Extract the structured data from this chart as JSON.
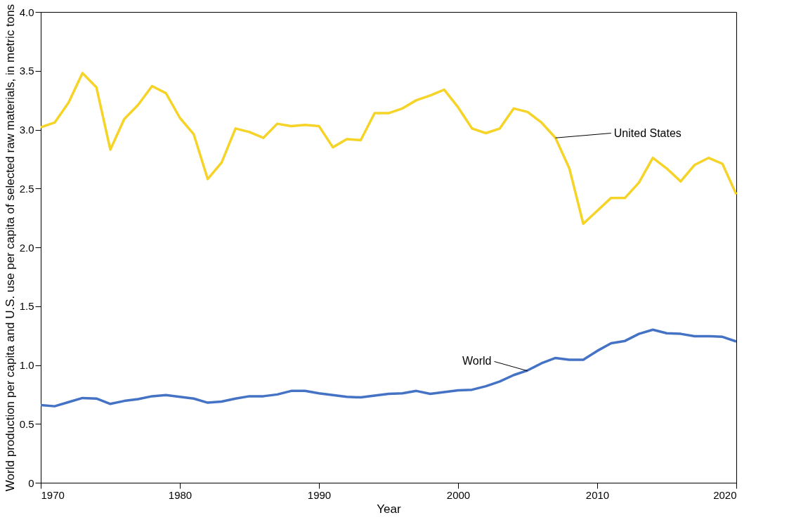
{
  "chart_data": {
    "type": "line",
    "xlabel": "Year",
    "ylabel": "World production per capita and U.S. use per capita of selected raw materials, in metric tons",
    "x": [
      1970,
      1971,
      1972,
      1973,
      1974,
      1975,
      1976,
      1977,
      1978,
      1979,
      1980,
      1981,
      1982,
      1983,
      1984,
      1985,
      1986,
      1987,
      1988,
      1989,
      1990,
      1991,
      1992,
      1993,
      1994,
      1995,
      1996,
      1997,
      1998,
      1999,
      2000,
      2001,
      2002,
      2003,
      2004,
      2005,
      2006,
      2007,
      2008,
      2009,
      2010,
      2011,
      2012,
      2013,
      2014,
      2015,
      2016,
      2017,
      2018,
      2019,
      2020
    ],
    "series": [
      {
        "color": "#f5d327",
        "values": [
          3.02,
          3.06,
          3.23,
          3.48,
          3.36,
          2.83,
          3.09,
          3.21,
          3.37,
          3.31,
          3.1,
          2.96,
          2.58,
          2.72,
          3.01,
          2.98,
          2.93,
          3.05,
          3.03,
          3.04,
          3.03,
          2.85,
          2.92,
          2.91,
          3.14,
          3.14,
          3.18,
          3.25,
          3.29,
          3.34,
          3.19,
          3.01,
          2.97,
          3.01,
          3.18,
          3.15,
          3.06,
          2.93,
          2.67,
          2.2,
          2.31,
          2.42,
          2.42,
          2.55,
          2.76,
          2.67,
          2.56,
          2.7,
          2.76,
          2.71,
          2.45
        ]
      },
      {
        "color": "#4472c4",
        "values": [
          0.66,
          0.65,
          0.685,
          0.72,
          0.715,
          0.67,
          0.695,
          0.71,
          0.735,
          0.745,
          0.73,
          0.715,
          0.68,
          0.69,
          0.715,
          0.735,
          0.735,
          0.75,
          0.78,
          0.78,
          0.76,
          0.745,
          0.73,
          0.725,
          0.74,
          0.755,
          0.76,
          0.78,
          0.755,
          0.77,
          0.785,
          0.79,
          0.82,
          0.86,
          0.915,
          0.955,
          1.015,
          1.06,
          1.045,
          1.045,
          1.12,
          1.185,
          1.205,
          1.265,
          1.3,
          1.27,
          1.265,
          1.245,
          1.245,
          1.24,
          1.2
        ]
      }
    ],
    "annotations": [
      {
        "text": "United States",
        "x": 2007,
        "y": 2.93
      },
      {
        "text": "World",
        "x": 2005,
        "y": 0.95
      }
    ],
    "xlim": [
      1970,
      2020
    ],
    "xticks": [
      1970,
      1980,
      1990,
      2000,
      2010,
      2020
    ],
    "ylim": [
      0,
      4
    ],
    "yticks": [
      {
        "value": 0,
        "label": "0"
      },
      {
        "value": 0.5,
        "label": "0.5"
      },
      {
        "value": 1,
        "label": "1.0"
      },
      1.5,
      {
        "value": 2,
        "label": "2.0"
      },
      2.5,
      {
        "value": 3,
        "label": "3.0"
      },
      3.5,
      {
        "value": 4,
        "label": "4.0"
      }
    ],
    "grid": false,
    "marker": "none",
    "line_style": "solid"
  }
}
